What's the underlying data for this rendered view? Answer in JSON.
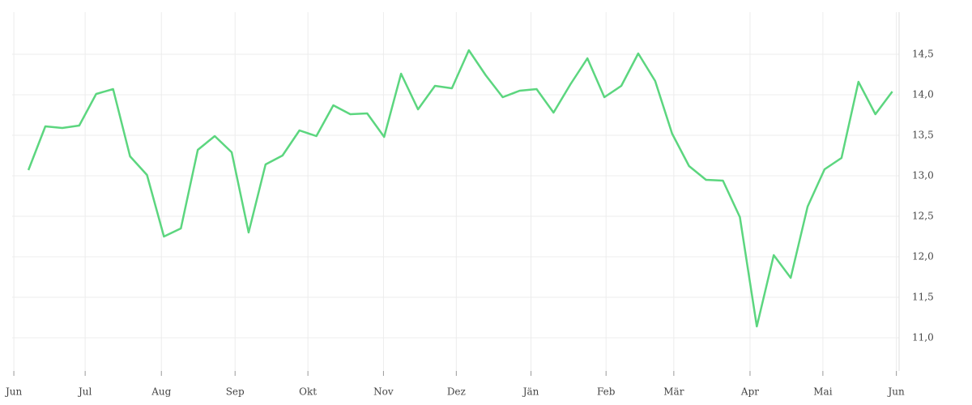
{
  "chart_data": {
    "type": "line",
    "x": [
      0,
      1,
      2,
      3,
      4,
      5,
      6,
      7,
      8,
      9,
      10,
      11,
      12,
      13,
      14,
      15,
      16,
      17,
      18,
      19,
      20,
      21,
      22,
      23,
      24,
      25,
      26,
      27,
      28,
      29,
      30,
      31,
      32,
      33,
      34,
      35,
      36,
      37,
      38,
      39,
      40,
      41,
      42,
      43,
      44,
      45,
      46,
      47,
      48,
      49,
      50,
      51
    ],
    "series": [
      {
        "color": "#5cd67f",
        "values": [
          13.07,
          13.61,
          13.59,
          13.62,
          14.01,
          14.07,
          13.24,
          13.01,
          12.25,
          12.35,
          13.32,
          13.49,
          13.29,
          12.3,
          13.14,
          13.25,
          13.56,
          13.49,
          13.87,
          13.76,
          13.77,
          13.48,
          14.26,
          13.82,
          14.11,
          14.08,
          14.55,
          14.24,
          13.97,
          14.05,
          14.07,
          13.78,
          14.13,
          14.45,
          13.97,
          14.11,
          14.51,
          14.17,
          13.52,
          13.12,
          12.95,
          12.94,
          12.49,
          11.14,
          12.02,
          11.74,
          12.62,
          13.08,
          13.22,
          14.16,
          13.76,
          14.04
        ]
      }
    ],
    "xlim": [
      -0.96,
      51.4
    ],
    "xticks": [
      {
        "value": -0.86,
        "label": "Jun"
      },
      {
        "value": 3.35,
        "label": "Jul"
      },
      {
        "value": 7.85,
        "label": "Aug"
      },
      {
        "value": 12.2,
        "label": "Sep"
      },
      {
        "value": 16.5,
        "label": "Okt"
      },
      {
        "value": 20.96,
        "label": "Nov"
      },
      {
        "value": 25.26,
        "label": "Dez"
      },
      {
        "value": 29.67,
        "label": "Jän"
      },
      {
        "value": 34.1,
        "label": "Feb"
      },
      {
        "value": 38.1,
        "label": "Mär"
      },
      {
        "value": 42.6,
        "label": "Apr"
      },
      {
        "value": 46.9,
        "label": "Mai"
      },
      {
        "value": 51.24,
        "label": "Jun"
      }
    ],
    "ylim": [
      10.59,
      15.02
    ],
    "yticks": [
      {
        "value": 11,
        "label": "11,0"
      },
      {
        "value": 11.5,
        "label": "11,5"
      },
      {
        "value": 12,
        "label": "12,0"
      },
      {
        "value": 12.5,
        "label": "12,5"
      },
      {
        "value": 13,
        "label": "13,0"
      },
      {
        "value": 13.5,
        "label": "13,5"
      },
      {
        "value": 14,
        "label": "14,0"
      },
      {
        "value": 14.5,
        "label": "14,5"
      }
    ],
    "grid": true
  }
}
